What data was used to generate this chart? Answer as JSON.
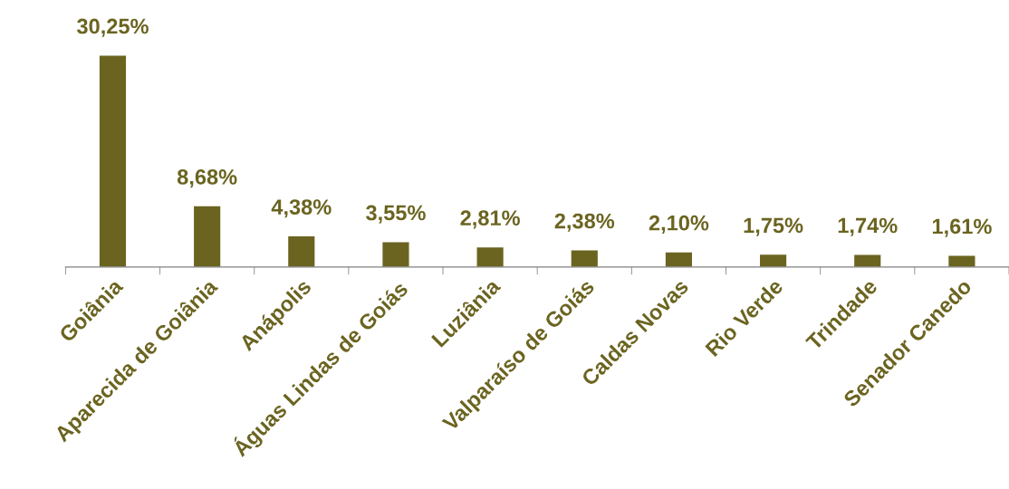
{
  "chart_data": {
    "type": "bar",
    "categories": [
      "Goiânia",
      "Aparecida de Goiânia",
      "Anápolis",
      "Águas Lindas de Goiás",
      "Luziânia",
      "Valparaíso de Goiás",
      "Caldas Novas",
      "Rio Verde",
      "Trindade",
      "Senador Canedo"
    ],
    "values": [
      30.25,
      8.68,
      4.38,
      3.55,
      2.81,
      2.38,
      2.1,
      1.75,
      1.74,
      1.61
    ],
    "value_labels": [
      "30,25%",
      "8,68%",
      "4,38%",
      "3,55%",
      "2,81%",
      "2,38%",
      "2,10%",
      "1,75%",
      "1,74%",
      "1,61%"
    ],
    "color": "#6b6420",
    "grid": false,
    "legend": false,
    "tick_labels": "x"
  }
}
